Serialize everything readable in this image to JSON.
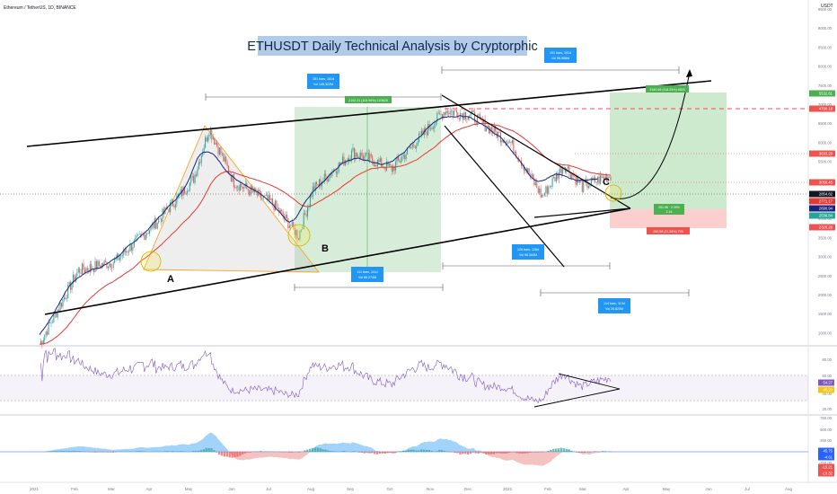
{
  "header": {
    "symbol_label": "Ethereum / TetherUS, 1D, BINANCE"
  },
  "title": "ETHUSDT Daily Technical Analysis by Cryptorphic",
  "currency": "USDT",
  "colors": {
    "up": "#26a69a",
    "down": "#ef5350",
    "ema_fast": "#1a237e",
    "ema_slow": "#e53935",
    "triangle": "#f5a623",
    "long_box": "#4caf50",
    "short_box": "#ef5350",
    "macd_up": "#64b5f6",
    "macd_down": "#ef9a9a",
    "rsi": "#7e57c2"
  },
  "annotations": {
    "point_a": "A",
    "point_b": "B",
    "point_c": "C",
    "range1_top": "181 bars, 181d",
    "range1_bottom": "Vol 145.322M",
    "range2_top": "191 bars, 191d",
    "range2_bottom": "Vol 96.586M",
    "green_box1": "2102.31 (104.96%) 103628",
    "range3_top": "111 bars, 111d",
    "range3_bottom": "Vol 66.274M",
    "range4_top": "128 bars, 128d",
    "range4_bottom": "Vol 96.384M",
    "range5_top": "114 bars, 114d",
    "range5_bottom": "Vol 26.825M",
    "long_target": "2340.65 (118.25%) 4603",
    "long_entry": "261.98 · 2.39%",
    "long_entry2": "2.16",
    "short_stop": "280.58 (11.28%) 795"
  },
  "price_axis": {
    "ticks": [
      "9500.00",
      "9000.00",
      "8500.00",
      "8000.00",
      "7500.00",
      "7000.00",
      "6500.00",
      "6000.00",
      "5500.00",
      "5000.00",
      "4500.00",
      "4000.00",
      "3500.00",
      "3000.00",
      "2500.00",
      "2000.00",
      "1500.00",
      "1000.00"
    ],
    "tags": [
      {
        "value": "5532.61",
        "color": "#4caf50"
      },
      {
        "value": "4790.18",
        "color": "#ef5350"
      },
      {
        "value": "3633.29",
        "color": "#ef5350"
      },
      {
        "value": "3050.45",
        "color": "#ef5350"
      },
      {
        "value": "2854.82",
        "color": "#131722"
      },
      {
        "value": "2771.17",
        "color": "#e53935"
      },
      {
        "value": "2690.94",
        "color": "#1a237e"
      },
      {
        "value": "2538.84",
        "color": "#26a69a"
      },
      {
        "value": "2320.26",
        "color": "#ef5350"
      }
    ]
  },
  "rsi_axis": {
    "ticks": [
      "80.00",
      "60.00",
      "40.00",
      "20.00"
    ],
    "tags": [
      {
        "value": "54.27",
        "color": "#7e57c2"
      },
      {
        "value": "45.20",
        "color": "#f5c518"
      }
    ]
  },
  "macd_axis": {
    "ticks": [
      "750.00",
      "500.00",
      "250.00",
      "0.00",
      "-250.00",
      "-500.00"
    ],
    "tags": [
      {
        "value": "45.75",
        "color": "#2962ff"
      },
      {
        "value": "-4.61",
        "color": "#2962ff"
      },
      {
        "value": "-15.21",
        "color": "#ef5350"
      },
      {
        "value": "-10.32",
        "color": "#ef5350"
      }
    ]
  },
  "time_axis": [
    "2021",
    "Feb",
    "Mar",
    "Apr",
    "May",
    "Jun",
    "Jul",
    "Aug",
    "Sep",
    "Oct",
    "Nov",
    "Dec",
    "2022",
    "Feb",
    "Mar",
    "Apr",
    "May",
    "Jun",
    "Jul",
    "Aug"
  ],
  "chart_data": {
    "type": "candlestick",
    "title": "ETHUSDT Daily Technical Analysis by Cryptorphic",
    "x_range": [
      "2021-01-01",
      "2022-03-18"
    ],
    "ylim": [
      1000,
      9500
    ],
    "y_scale": "log",
    "key_points": [
      {
        "label": "A",
        "date": "2021-03-25",
        "price": 1650
      },
      {
        "label": "B",
        "date": "2021-07-20",
        "price": 1750
      },
      {
        "label": "C",
        "date": "2022-03-15",
        "price": 2750
      }
    ],
    "monthly_close": [
      {
        "date": "2021-01-01",
        "value": 730
      },
      {
        "date": "2021-01-31",
        "value": 1320
      },
      {
        "date": "2021-02-28",
        "value": 1420
      },
      {
        "date": "2021-03-31",
        "value": 1920
      },
      {
        "date": "2021-04-30",
        "value": 2770
      },
      {
        "date": "2021-05-12",
        "value": 4150
      },
      {
        "date": "2021-05-31",
        "value": 2700
      },
      {
        "date": "2021-06-30",
        "value": 2270
      },
      {
        "date": "2021-07-20",
        "value": 1750
      },
      {
        "date": "2021-07-31",
        "value": 2540
      },
      {
        "date": "2021-08-31",
        "value": 3430
      },
      {
        "date": "2021-09-30",
        "value": 3000
      },
      {
        "date": "2021-10-31",
        "value": 4290
      },
      {
        "date": "2021-11-10",
        "value": 4800
      },
      {
        "date": "2021-11-30",
        "value": 4630
      },
      {
        "date": "2021-12-31",
        "value": 3680
      },
      {
        "date": "2022-01-24",
        "value": 2400
      },
      {
        "date": "2022-02-10",
        "value": 3100
      },
      {
        "date": "2022-02-24",
        "value": 2600
      },
      {
        "date": "2022-03-18",
        "value": 2850
      }
    ],
    "rsi_range": [
      20,
      80
    ],
    "macd_range": [
      -500,
      750
    ]
  }
}
